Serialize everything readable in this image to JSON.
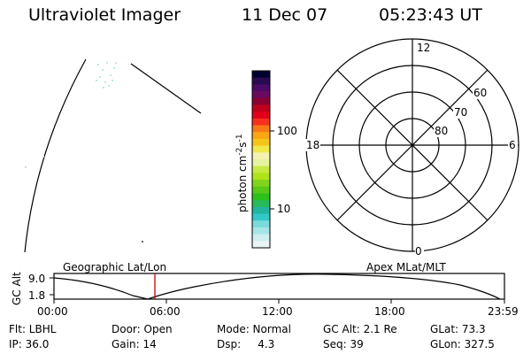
{
  "header": {
    "title": "Ultraviolet Imager",
    "date": "11 Dec 07",
    "time": "05:23:43 UT"
  },
  "colorbar": {
    "label": "photon cm",
    "exp1": "-2",
    "mid": "s",
    "exp2": "-1",
    "ticks": [
      "100",
      "10"
    ],
    "colors": [
      "#000030",
      "#2a0b50",
      "#4a0c66",
      "#6a0a5e",
      "#8a0033",
      "#c0001c",
      "#e2001a",
      "#f7301e",
      "#f77a16",
      "#f9a814",
      "#f4c41a",
      "#efe94c",
      "#f2f2b0",
      "#e5f2a0",
      "#c7ea42",
      "#aee31b",
      "#7fd51b",
      "#58c819",
      "#2ec01a",
      "#27ba58",
      "#22b5a0",
      "#33c8c8",
      "#7adbdc",
      "#a6e5e5",
      "#cfeeee",
      "#e9f5f5"
    ]
  },
  "polar_plot": {
    "hour_labels": [
      "12",
      "6",
      "0",
      "18"
    ],
    "lat_labels": [
      "60",
      "70",
      "80"
    ]
  },
  "timeline": {
    "axis_label": "GC Alt",
    "top_value": "9.0",
    "bottom_value": "1.8",
    "left_caption": "Geographic Lat/Lon",
    "right_caption": "Apex MLat/MLT",
    "time_ticks": [
      "00:00",
      "06:00",
      "12:00",
      "18:00",
      "23:59"
    ]
  },
  "status": {
    "filter": "Flt: LBHL",
    "door": "Door: Open",
    "mode": "Mode: Normal",
    "gc_alt": "GC Alt: 2.1 Re",
    "glat": "GLat:  73.3",
    "ip": "IP: 36.0",
    "gain": "Gain: 14",
    "dsp": "Dsp:     4.3",
    "seq": "Seq: 39",
    "glon": "GLon: 327.5"
  },
  "accent": {
    "marker_color": "#cc0000"
  }
}
